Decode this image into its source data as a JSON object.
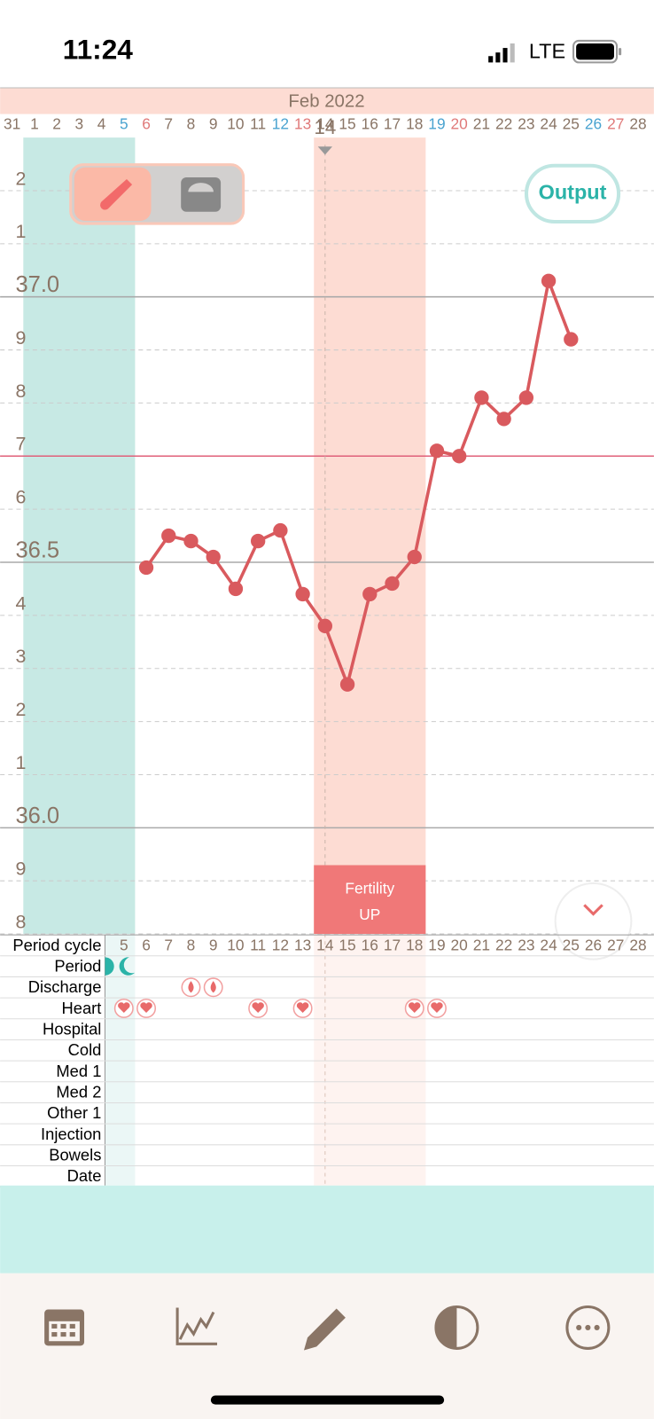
{
  "status_bar": {
    "time": "11:24",
    "network": "LTE"
  },
  "chart_data": {
    "type": "line",
    "title": "Feb 2022",
    "categories": [
      "31",
      "1",
      "2",
      "3",
      "4",
      "5",
      "6",
      "7",
      "8",
      "9",
      "10",
      "11",
      "12",
      "13",
      "14",
      "15",
      "16",
      "17",
      "18",
      "19",
      "20",
      "21",
      "22",
      "23",
      "24",
      "25",
      "26",
      "27",
      "28"
    ],
    "category_colors": [
      "#8a7566",
      "#8a7566",
      "#8a7566",
      "#8a7566",
      "#8a7566",
      "#4aa3d0",
      "#e07a7a",
      "#8a7566",
      "#8a7566",
      "#8a7566",
      "#8a7566",
      "#8a7566",
      "#4aa3d0",
      "#e07a7a",
      "#8a7566",
      "#8a7566",
      "#8a7566",
      "#8a7566",
      "#8a7566",
      "#4aa3d0",
      "#e07a7a",
      "#8a7566",
      "#8a7566",
      "#8a7566",
      "#8a7566",
      "#8a7566",
      "#4aa3d0",
      "#e07a7a",
      "#8a7566"
    ],
    "values": [
      null,
      null,
      null,
      null,
      null,
      null,
      36.49,
      36.55,
      36.54,
      36.51,
      36.45,
      36.54,
      36.56,
      36.44,
      36.38,
      36.27,
      36.44,
      36.46,
      36.51,
      36.71,
      36.7,
      36.81,
      36.77,
      36.81,
      37.03,
      36.92,
      null,
      null,
      null
    ],
    "color": "#d95a5e",
    "ylim": [
      35.8,
      37.3
    ],
    "yticks": [
      {
        "value": 37.2,
        "label": "2"
      },
      {
        "value": 37.1,
        "label": "1"
      },
      {
        "value": 37.0,
        "label": "37.0"
      },
      {
        "value": 36.9,
        "label": "9"
      },
      {
        "value": 36.8,
        "label": "8"
      },
      {
        "value": 36.7,
        "label": "7"
      },
      {
        "value": 36.6,
        "label": "6"
      },
      36.5,
      {
        "value": 36.4,
        "label": "4"
      },
      {
        "value": 36.3,
        "label": "3"
      },
      {
        "value": 36.2,
        "label": "2"
      },
      {
        "value": 36.1,
        "label": "1"
      },
      {
        "value": 36.0,
        "label": "36.0"
      },
      {
        "value": 35.9,
        "label": "9"
      },
      {
        "value": 35.8,
        "label": "8"
      }
    ],
    "grid": true,
    "cover_line": 36.7,
    "marker_label": "14",
    "highlight_ranges": [
      {
        "from": "1",
        "to": "5",
        "color": "#c7e9e4"
      },
      {
        "from": "14",
        "to": "18",
        "color": "#fddcd3"
      }
    ],
    "annotation_lines": [
      "Fertility",
      "UP"
    ]
  },
  "output_button": "Output",
  "events": {
    "cycle_days": [
      "5",
      "6",
      "7",
      "8",
      "9",
      "10",
      "11",
      "12",
      "13",
      "14",
      "15",
      "16",
      "17",
      "18",
      "19",
      "20",
      "21",
      "22",
      "23",
      "24",
      "25",
      "26",
      "27",
      "28"
    ],
    "rows": [
      "Period cycle",
      "Period",
      "Discharge",
      "Heart",
      "Hospital",
      "Cold",
      "Med 1",
      "Med 2",
      "Other 1",
      "Injection",
      "Bowels",
      "Date"
    ],
    "period_days": [
      "4",
      "5"
    ],
    "discharge_days": [
      "8",
      "9"
    ],
    "heart_days": [
      "5",
      "6",
      "11",
      "13",
      "18",
      "19"
    ]
  }
}
